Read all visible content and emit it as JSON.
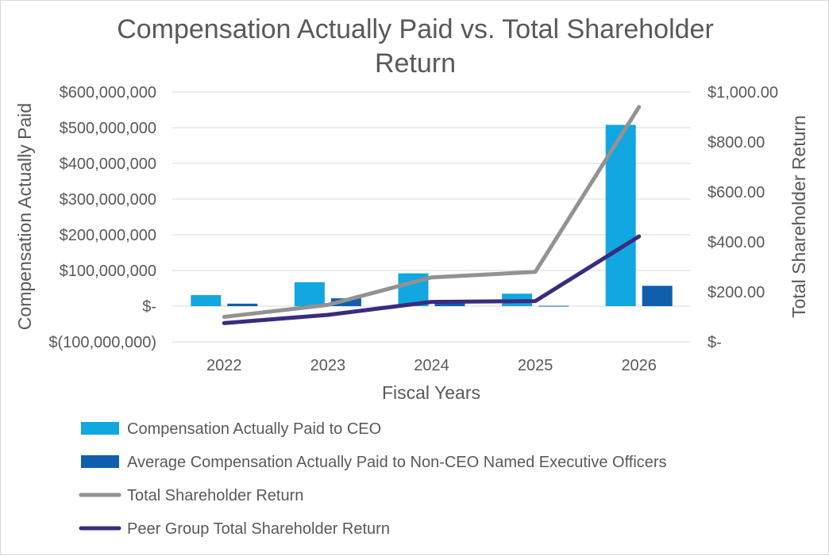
{
  "chart_data": {
    "type": "bar",
    "title_lines": [
      "Compensation Actually Paid vs. Total Shareholder",
      "Return"
    ],
    "xlabel": "Fiscal Years",
    "ylabel": "Compensation Actually Paid",
    "y2label": "Total Shareholder Return",
    "categories": [
      "2022",
      "2023",
      "2024",
      "2025",
      "2026"
    ],
    "ylim": [
      -100000000,
      600000000
    ],
    "y2lim": [
      0,
      1000
    ],
    "yticks": [
      {
        "value": 600000000,
        "label": "$600,000,000"
      },
      {
        "value": 500000000,
        "label": "$500,000,000"
      },
      {
        "value": 400000000,
        "label": "$400,000,000"
      },
      {
        "value": 300000000,
        "label": "$300,000,000"
      },
      {
        "value": 200000000,
        "label": "$200,000,000"
      },
      {
        "value": 100000000,
        "label": "$100,000,000"
      },
      {
        "value": 0,
        "label": "$-"
      },
      {
        "value": -100000000,
        "label": "$(100,000,000)"
      }
    ],
    "y2ticks": [
      {
        "value": 1000,
        "label": "$1,000.00"
      },
      {
        "value": 800,
        "label": "$800.00"
      },
      {
        "value": 600,
        "label": "$600.00"
      },
      {
        "value": 400,
        "label": "$400.00"
      },
      {
        "value": 200,
        "label": "$200.00"
      },
      {
        "value": 0,
        "label": "$-"
      }
    ],
    "grid": true,
    "legend_position": "bottom",
    "series": [
      {
        "name": "Compensation Actually Paid to CEO",
        "kind": "bar",
        "axis": "left",
        "color": "#11a7e0",
        "values": [
          31000000,
          67000000,
          92000000,
          35000000,
          508000000
        ]
      },
      {
        "name": "Average Compensation Actually Paid to Non-CEO Named Executive Officers",
        "kind": "bar",
        "axis": "left",
        "color": "#0f5fad",
        "values": [
          7000000,
          22000000,
          9000000,
          1000000,
          57000000
        ]
      },
      {
        "name": "Total Shareholder Return",
        "kind": "line",
        "axis": "right",
        "color": "#929292",
        "values": [
          100,
          148,
          258,
          280,
          940
        ]
      },
      {
        "name": "Peer Group Total Shareholder Return",
        "kind": "line",
        "axis": "right",
        "color": "#3b2b7e",
        "values": [
          75,
          108,
          160,
          163,
          422
        ]
      }
    ]
  }
}
